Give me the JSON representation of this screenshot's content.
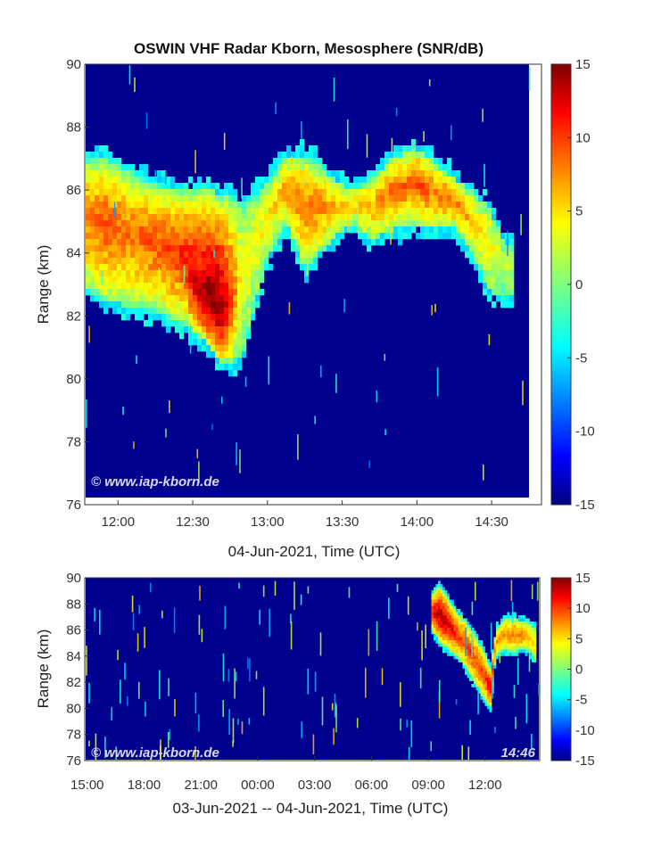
{
  "chart_data": [
    {
      "type": "heatmap",
      "title": "OSWIN VHF Radar Kborn, Mesosphere (SNR/dB)",
      "xlabel": "04-Jun-2021, Time (UTC)",
      "ylabel": "Range (km)",
      "xlim": [
        "11:47",
        "14:45"
      ],
      "ylim": [
        76,
        90
      ],
      "x_ticks": [
        "12:00",
        "12:30",
        "13:00",
        "13:30",
        "14:00",
        "14:30"
      ],
      "y_ticks": [
        76,
        78,
        80,
        82,
        84,
        86,
        88,
        90
      ],
      "colorbar": {
        "min": -15,
        "max": 15,
        "ticks": [
          15,
          10,
          5,
          0,
          -5,
          -10,
          -15
        ],
        "colormap": "jet"
      },
      "background_value": -14,
      "layer": {
        "x": [
          "11:47",
          "11:55",
          "12:05",
          "12:15",
          "12:25",
          "12:32",
          "12:37",
          "12:41",
          "12:45",
          "12:50",
          "13:00",
          "13:08",
          "13:15",
          "13:20",
          "13:28",
          "13:35",
          "13:42",
          "13:50",
          "14:00",
          "14:08",
          "14:15",
          "14:22",
          "14:30",
          "14:36"
        ],
        "top_km": [
          86.9,
          86.9,
          86.5,
          86.1,
          85.9,
          85.9,
          85.9,
          85.8,
          85.8,
          85.4,
          86.1,
          87.0,
          87.0,
          86.8,
          86.2,
          85.9,
          86.3,
          86.9,
          87.3,
          86.8,
          86.3,
          85.9,
          85.3,
          84.2
        ],
        "bottom_km": [
          82.7,
          82.3,
          82.1,
          81.9,
          81.6,
          81.2,
          80.8,
          80.3,
          80.3,
          80.5,
          83.6,
          84.8,
          83.4,
          83.7,
          84.4,
          84.8,
          84.2,
          84.6,
          84.8,
          84.6,
          84.7,
          83.9,
          82.6,
          82.5
        ],
        "peak_snr": [
          8,
          9,
          8,
          9,
          10,
          13,
          15,
          15,
          11,
          3,
          4,
          7,
          8,
          8,
          6,
          5,
          6,
          8,
          9,
          8,
          8,
          6,
          4,
          2
        ]
      },
      "watermark": "© www.iap-kborn.de"
    },
    {
      "type": "heatmap",
      "xlabel": "03-Jun-2021 -- 04-Jun-2021, Time (UTC)",
      "ylabel": "Range (km)",
      "xlim": [
        "03-Jun 14:55",
        "04-Jun 14:50"
      ],
      "ylim": [
        76,
        90
      ],
      "x_ticks": [
        "15:00",
        "18:00",
        "21:00",
        "00:00",
        "03:00",
        "06:00",
        "09:00",
        "12:00"
      ],
      "y_ticks": [
        76,
        78,
        80,
        82,
        84,
        86,
        88,
        90
      ],
      "colorbar": {
        "min": -15,
        "max": 15,
        "ticks": [
          15,
          10,
          5,
          0,
          -5,
          -10,
          -15
        ],
        "colormap": "jet"
      },
      "background_value": -14,
      "layer": {
        "x_hours_of_day": [
          9.2,
          9.6,
          10.0,
          10.4,
          10.8,
          11.2,
          11.6,
          12.0,
          12.3,
          12.6,
          13.0,
          13.5,
          14.0,
          14.4,
          14.7
        ],
        "top_km": [
          88.7,
          89.4,
          88.6,
          87.6,
          87.0,
          86.2,
          85.3,
          84.2,
          83.0,
          86.0,
          86.8,
          87.0,
          86.6,
          86.5,
          86.0
        ],
        "bottom_km": [
          86.0,
          85.0,
          84.5,
          84.0,
          83.5,
          82.5,
          81.5,
          80.5,
          80.0,
          84.0,
          84.4,
          84.2,
          84.5,
          84.2,
          83.5
        ],
        "peak_snr": [
          11,
          14,
          13,
          11,
          9,
          10,
          9,
          10,
          12,
          7,
          7,
          8,
          8,
          6,
          5
        ]
      },
      "watermark": "© www.iap-kborn.de",
      "timestamp": "14:46"
    }
  ]
}
